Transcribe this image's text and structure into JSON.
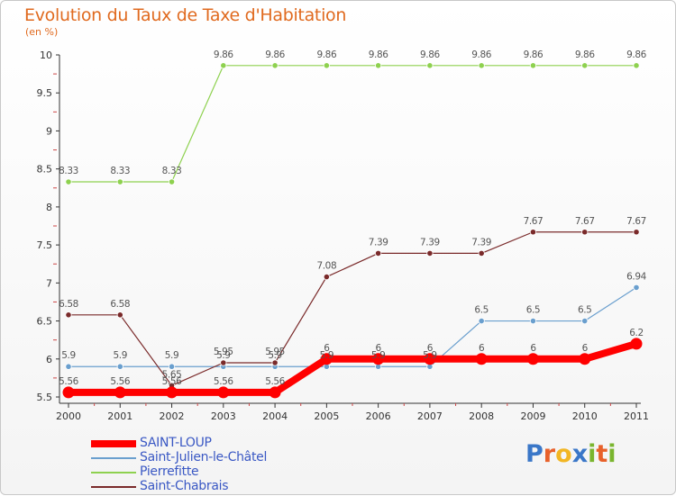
{
  "header": {
    "title": "Evolution du Taux de Taxe d'Habitation",
    "subtitle": "(en %)"
  },
  "brand": {
    "logo_letters": [
      "P",
      "r",
      "o",
      "x",
      "i",
      "t",
      "i"
    ],
    "logo_colors": [
      "#3a77c8",
      "#e8612a",
      "#f2b623",
      "#3a77c8",
      "#7ab52e",
      "#e8612a",
      "#7ab52e"
    ]
  },
  "chart_data": {
    "type": "line",
    "title": "Evolution du Taux de Taxe d'Habitation",
    "ylabel": "(en %)",
    "xlabel": "",
    "ylim": [
      5.5,
      10
    ],
    "yticks": [
      "5.5",
      "6",
      "6.5",
      "7",
      "7.5",
      "8",
      "8.5",
      "9",
      "9.5",
      "10"
    ],
    "categories": [
      "2000",
      "2001",
      "2002",
      "2003",
      "2004",
      "2005",
      "2006",
      "2007",
      "2008",
      "2009",
      "2010",
      "2011"
    ],
    "grid": false,
    "series": [
      {
        "name": "Saint-Julien-le-Châtel",
        "color": "#6a9fce",
        "values": [
          5.9,
          5.9,
          5.9,
          5.9,
          5.9,
          5.9,
          5.9,
          5.9,
          6.5,
          6.5,
          6.5,
          6.94
        ],
        "labels": [
          "5.9",
          "5.9",
          "5.9",
          "5.9",
          "5.9",
          "5.9",
          "5.9",
          "5.9",
          "6.5",
          "6.5",
          "6.5",
          "6.94"
        ]
      },
      {
        "name": "Pierrefitte",
        "color": "#8ed14f",
        "values": [
          8.33,
          8.33,
          8.33,
          9.86,
          9.86,
          9.86,
          9.86,
          9.86,
          9.86,
          9.86,
          9.86,
          9.86
        ],
        "labels": [
          "8.33",
          "8.33",
          "8.33",
          "9.86",
          "9.86",
          "9.86",
          "9.86",
          "9.86",
          "9.86",
          "9.86",
          "9.86",
          "9.86"
        ]
      },
      {
        "name": "Saint-Chabrais",
        "color": "#7a2a2a",
        "values": [
          6.58,
          6.58,
          5.65,
          5.95,
          5.95,
          7.08,
          7.39,
          7.39,
          7.39,
          7.67,
          7.67,
          7.67
        ],
        "labels": [
          "6.58",
          "6.58",
          "5.65",
          "5.95",
          "5.95",
          "7.08",
          "7.39",
          "7.39",
          "7.39",
          "7.67",
          "7.67",
          "7.67"
        ]
      },
      {
        "name": "SAINT-LOUP",
        "color": "#ff0000",
        "values": [
          5.56,
          5.56,
          5.56,
          5.56,
          5.56,
          6,
          6,
          6,
          6,
          6,
          6,
          6.2
        ],
        "labels": [
          "5.56",
          "5.56",
          "5.56",
          "5.56",
          "5.56",
          "6",
          "6",
          "6",
          "6",
          "6",
          "6",
          "6.2"
        ]
      }
    ],
    "legend": {
      "placement": "bottom-left",
      "order": [
        "SAINT-LOUP",
        "Saint-Julien-le-Châtel",
        "Pierrefitte",
        "Saint-Chabrais"
      ]
    }
  }
}
